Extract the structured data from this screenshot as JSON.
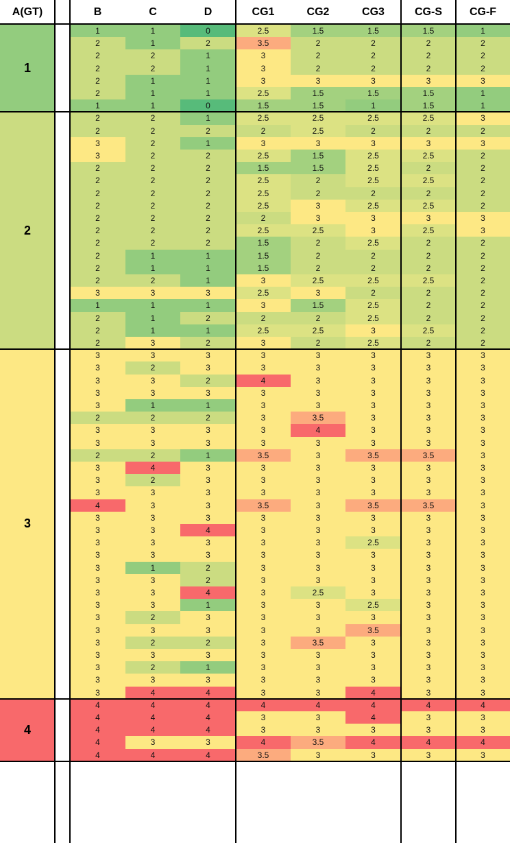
{
  "headers": [
    "A(GT)",
    "",
    "B",
    "C",
    "D",
    "CG1",
    "CG2",
    "CG3",
    "CG-S",
    "CG-F"
  ],
  "colors": {
    "0": "#57bb7a",
    "1": "#93cc7e",
    "1.5": "#a3d17f",
    "2": "#cbdc81",
    "2.5": "#dce283",
    "3": "#fde884",
    "3.5": "#fcab7e",
    "4": "#f8696b"
  },
  "groups": [
    {
      "label": "1",
      "value": "1",
      "rows": [
        [
          "1",
          "1",
          "0",
          "2.5",
          "1.5",
          "1.5",
          "1.5",
          "1"
        ],
        [
          "2",
          "1",
          "2",
          "3.5",
          "2",
          "2",
          "2",
          "2"
        ],
        [
          "2",
          "2",
          "1",
          "3",
          "2",
          "2",
          "2",
          "2"
        ],
        [
          "2",
          "2",
          "1",
          "3",
          "2",
          "2",
          "2",
          "2"
        ],
        [
          "2",
          "1",
          "1",
          "3",
          "3",
          "3",
          "3",
          "3"
        ],
        [
          "2",
          "1",
          "1",
          "2.5",
          "1.5",
          "1.5",
          "1.5",
          "1"
        ],
        [
          "1",
          "1",
          "0",
          "1.5",
          "1.5",
          "1",
          "1.5",
          "1"
        ]
      ]
    },
    {
      "label": "2",
      "value": "2",
      "rows": [
        [
          "2",
          "2",
          "1",
          "2.5",
          "2.5",
          "2.5",
          "2.5",
          "3"
        ],
        [
          "2",
          "2",
          "2",
          "2",
          "2.5",
          "2",
          "2",
          "2"
        ],
        [
          "3",
          "2",
          "1",
          "3",
          "3",
          "3",
          "3",
          "3"
        ],
        [
          "3",
          "2",
          "2",
          "2.5",
          "1.5",
          "2.5",
          "2.5",
          "2"
        ],
        [
          "2",
          "2",
          "2",
          "1.5",
          "1.5",
          "2.5",
          "2",
          "2"
        ],
        [
          "2",
          "2",
          "2",
          "2.5",
          "2",
          "2.5",
          "2.5",
          "2"
        ],
        [
          "2",
          "2",
          "2",
          "2.5",
          "2",
          "2",
          "2",
          "2"
        ],
        [
          "2",
          "2",
          "2",
          "2.5",
          "3",
          "2.5",
          "2.5",
          "2"
        ],
        [
          "2",
          "2",
          "2",
          "2",
          "3",
          "3",
          "3",
          "3"
        ],
        [
          "2",
          "2",
          "2",
          "2.5",
          "2.5",
          "3",
          "2.5",
          "3"
        ],
        [
          "2",
          "2",
          "2",
          "1.5",
          "2",
          "2.5",
          "2",
          "2"
        ],
        [
          "2",
          "1",
          "1",
          "1.5",
          "2",
          "2",
          "2",
          "2"
        ],
        [
          "2",
          "1",
          "1",
          "1.5",
          "2",
          "2",
          "2",
          "2"
        ],
        [
          "2",
          "2",
          "1",
          "3",
          "2.5",
          "2.5",
          "2.5",
          "2"
        ],
        [
          "3",
          "3",
          "3",
          "2.5",
          "3",
          "2",
          "2",
          "2"
        ],
        [
          "1",
          "1",
          "1",
          "3",
          "1.5",
          "2.5",
          "2",
          "2"
        ],
        [
          "2",
          "1",
          "2",
          "2",
          "2",
          "2.5",
          "2",
          "2"
        ],
        [
          "2",
          "1",
          "1",
          "2.5",
          "2.5",
          "3",
          "2.5",
          "2"
        ],
        [
          "2",
          "3",
          "2",
          "3",
          "2",
          "2.5",
          "2",
          "2"
        ]
      ]
    },
    {
      "label": "3",
      "value": "3",
      "rows": [
        [
          "3",
          "3",
          "3",
          "3",
          "3",
          "3",
          "3",
          "3"
        ],
        [
          "3",
          "2",
          "3",
          "3",
          "3",
          "3",
          "3",
          "3"
        ],
        [
          "3",
          "3",
          "2",
          "4",
          "3",
          "3",
          "3",
          "3"
        ],
        [
          "3",
          "3",
          "3",
          "3",
          "3",
          "3",
          "3",
          "3"
        ],
        [
          "3",
          "1",
          "1",
          "3",
          "3",
          "3",
          "3",
          "3"
        ],
        [
          "2",
          "2",
          "2",
          "3",
          "3.5",
          "3",
          "3",
          "3"
        ],
        [
          "3",
          "3",
          "3",
          "3",
          "4",
          "3",
          "3",
          "3"
        ],
        [
          "3",
          "3",
          "3",
          "3",
          "3",
          "3",
          "3",
          "3"
        ],
        [
          "2",
          "2",
          "1",
          "3.5",
          "3",
          "3.5",
          "3.5",
          "3"
        ],
        [
          "3",
          "4",
          "3",
          "3",
          "3",
          "3",
          "3",
          "3"
        ],
        [
          "3",
          "2",
          "3",
          "3",
          "3",
          "3",
          "3",
          "3"
        ],
        [
          "3",
          "3",
          "3",
          "3",
          "3",
          "3",
          "3",
          "3"
        ],
        [
          "4",
          "3",
          "3",
          "3.5",
          "3",
          "3.5",
          "3.5",
          "3"
        ],
        [
          "3",
          "3",
          "3",
          "3",
          "3",
          "3",
          "3",
          "3"
        ],
        [
          "3",
          "3",
          "4",
          "3",
          "3",
          "3",
          "3",
          "3"
        ],
        [
          "3",
          "3",
          "3",
          "3",
          "3",
          "2.5",
          "3",
          "3"
        ],
        [
          "3",
          "3",
          "3",
          "3",
          "3",
          "3",
          "3",
          "3"
        ],
        [
          "3",
          "1",
          "2",
          "3",
          "3",
          "3",
          "3",
          "3"
        ],
        [
          "3",
          "3",
          "2",
          "3",
          "3",
          "3",
          "3",
          "3"
        ],
        [
          "3",
          "3",
          "4",
          "3",
          "2.5",
          "3",
          "3",
          "3"
        ],
        [
          "3",
          "3",
          "1",
          "3",
          "3",
          "2.5",
          "3",
          "3"
        ],
        [
          "3",
          "2",
          "3",
          "3",
          "3",
          "3",
          "3",
          "3"
        ],
        [
          "3",
          "3",
          "3",
          "3",
          "3",
          "3.5",
          "3",
          "3"
        ],
        [
          "3",
          "2",
          "2",
          "3",
          "3.5",
          "3",
          "3",
          "3"
        ],
        [
          "3",
          "3",
          "3",
          "3",
          "3",
          "3",
          "3",
          "3"
        ],
        [
          "3",
          "2",
          "1",
          "3",
          "3",
          "3",
          "3",
          "3"
        ],
        [
          "3",
          "3",
          "3",
          "3",
          "3",
          "3",
          "3",
          "3"
        ],
        [
          "3",
          "4",
          "4",
          "3",
          "3",
          "4",
          "3",
          "3"
        ]
      ]
    },
    {
      "label": "4",
      "value": "4",
      "rows": [
        [
          "4",
          "4",
          "4",
          "4",
          "4",
          "4",
          "4",
          "4"
        ],
        [
          "4",
          "4",
          "4",
          "3",
          "3",
          "4",
          "3",
          "3"
        ],
        [
          "4",
          "4",
          "4",
          "3",
          "3",
          "3",
          "3",
          "3"
        ],
        [
          "4",
          "3",
          "3",
          "4",
          "3.5",
          "4",
          "4",
          "4"
        ],
        [
          "4",
          "4",
          "4",
          "3.5",
          "3",
          "3",
          "3",
          "3"
        ]
      ]
    }
  ]
}
